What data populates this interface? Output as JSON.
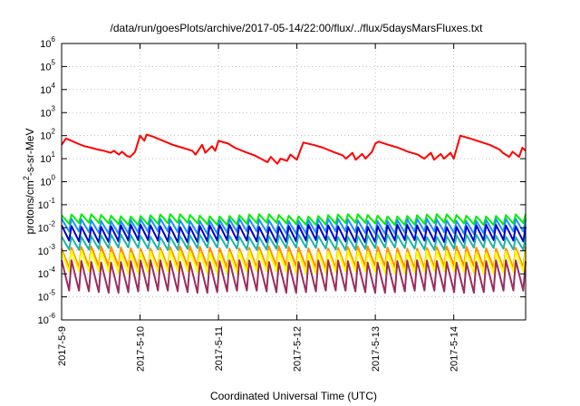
{
  "chart_data": {
    "type": "line",
    "title": "/data/run/goesPlots/archive/2017-05-14/22:00/flux/../flux/5daysMarsFluxes.txt",
    "xlabel": "Coordinated Universal Time (UTC)",
    "ylabel": "protons/cm²-s-sr-MeV",
    "ylabel_parts": {
      "pre": "protons/cm",
      "sup": "2",
      "post": "-s-sr-MeV"
    },
    "y_scale": "log",
    "ylim": [
      1e-06,
      1000000.0
    ],
    "y_ticks": [
      {
        "value": 1e-06,
        "base": "10",
        "exp": "-6"
      },
      {
        "value": 1e-05,
        "base": "10",
        "exp": "-5"
      },
      {
        "value": 0.0001,
        "base": "10",
        "exp": "-4"
      },
      {
        "value": 0.001,
        "base": "10",
        "exp": "-3"
      },
      {
        "value": 0.01,
        "base": "10",
        "exp": "-2"
      },
      {
        "value": 0.1,
        "base": "10",
        "exp": "-1"
      },
      {
        "value": 1,
        "base": "10",
        "exp": "0"
      },
      {
        "value": 10,
        "base": "10",
        "exp": "1"
      },
      {
        "value": 100,
        "base": "10",
        "exp": "2"
      },
      {
        "value": 1000,
        "base": "10",
        "exp": "3"
      },
      {
        "value": 10000,
        "base": "10",
        "exp": "4"
      },
      {
        "value": 100000,
        "base": "10",
        "exp": "5"
      },
      {
        "value": 1000000,
        "base": "10",
        "exp": "6"
      }
    ],
    "xlim": [
      "2017-05-09T00:00",
      "2017-05-14T22:00"
    ],
    "x_ticks": [
      "2017-5-9",
      "2017-5-10",
      "2017-5-11",
      "2017-5-12",
      "2017-5-13",
      "2017-5-14"
    ],
    "grid": true,
    "grid_style": "dotted",
    "series": [
      {
        "color": "#ff0000",
        "x": [
          "2017-05-09T00:00",
          "2017-05-09T01:20",
          "2017-05-09T03:00",
          "2017-05-09T05:00",
          "2017-05-09T07:00",
          "2017-05-09T09:00",
          "2017-05-09T11:00",
          "2017-05-09T13:00",
          "2017-05-09T15:00",
          "2017-05-09T16:00",
          "2017-05-09T17:30",
          "2017-05-09T18:30",
          "2017-05-09T20:00",
          "2017-05-09T21:00",
          "2017-05-09T22:30",
          "2017-05-10T00:00",
          "2017-05-10T01:20",
          "2017-05-10T02:00",
          "2017-05-10T04:00",
          "2017-05-10T07:00",
          "2017-05-10T10:00",
          "2017-05-10T13:00",
          "2017-05-10T16:00",
          "2017-05-10T17:00",
          "2017-05-10T19:00",
          "2017-05-10T20:00",
          "2017-05-10T22:00",
          "2017-05-10T23:00",
          "2017-05-11T00:00",
          "2017-05-11T03:00",
          "2017-05-11T05:00",
          "2017-05-11T08:00",
          "2017-05-11T11:00",
          "2017-05-11T13:00",
          "2017-05-11T15:00",
          "2017-05-11T16:00",
          "2017-05-11T18:00",
          "2017-05-11T19:00",
          "2017-05-11T21:00",
          "2017-05-11T22:00",
          "2017-05-12T00:00",
          "2017-05-12T01:00",
          "2017-05-12T02:00",
          "2017-05-12T05:00",
          "2017-05-12T08:00",
          "2017-05-12T11:00",
          "2017-05-12T14:00",
          "2017-05-12T15:00",
          "2017-05-12T17:00",
          "2017-05-12T18:00",
          "2017-05-12T20:00",
          "2017-05-12T21:00",
          "2017-05-12T23:00",
          "2017-05-13T00:00",
          "2017-05-13T01:00",
          "2017-05-13T04:00",
          "2017-05-13T07:00",
          "2017-05-13T10:00",
          "2017-05-13T13:00",
          "2017-05-13T15:00",
          "2017-05-13T17:00",
          "2017-05-13T18:00",
          "2017-05-13T20:00",
          "2017-05-13T21:00",
          "2017-05-13T23:00",
          "2017-05-14T00:00",
          "2017-05-14T02:00",
          "2017-05-14T05:00",
          "2017-05-14T08:00",
          "2017-05-14T11:00",
          "2017-05-14T14:00",
          "2017-05-14T15:00",
          "2017-05-14T17:00",
          "2017-05-14T18:00",
          "2017-05-14T20:00",
          "2017-05-14T21:00",
          "2017-05-14T22:00"
        ],
        "y": [
          40,
          75,
          60,
          45,
          35,
          30,
          25,
          22,
          18,
          22,
          15,
          20,
          13,
          12,
          20,
          100,
          60,
          110,
          90,
          60,
          40,
          30,
          22,
          15,
          40,
          18,
          35,
          22,
          60,
          45,
          30,
          20,
          14,
          10,
          7,
          12,
          6,
          10,
          8,
          15,
          9,
          22,
          50,
          40,
          30,
          20,
          14,
          10,
          18,
          9,
          16,
          10,
          20,
          45,
          55,
          40,
          30,
          20,
          15,
          10,
          18,
          9,
          16,
          10,
          18,
          10,
          100,
          75,
          55,
          40,
          25,
          18,
          12,
          20,
          12,
          30,
          22
        ]
      }
    ],
    "periodic_series": [
      {
        "color": "#00ee00",
        "peak": 0.035,
        "trough": 0.012
      },
      {
        "color": "#1e90ff",
        "peak": 0.022,
        "trough": 0.0045
      },
      {
        "color": "#0000cd",
        "peak": 0.012,
        "trough": 0.0018
      },
      {
        "color": "#20b2aa",
        "peak": 0.0045,
        "trough": 0.0009
      },
      {
        "color": "#ff8c00",
        "peak": 0.0014,
        "trough": 0.00012
      },
      {
        "color": "#ffff00",
        "peak": 0.0009,
        "trough": 7e-05
      },
      {
        "color": "#9b2d5f",
        "peak": 0.00035,
        "trough": 8e-06
      }
    ],
    "periodic_peaks_per_day": 8
  }
}
